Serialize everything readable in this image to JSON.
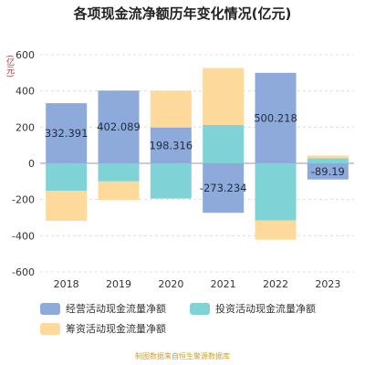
{
  "title": "各项现金流净额历年变化情况(亿元)",
  "unit_label": "(亿元)",
  "footer": "制图数据来自恒生聚源数据库",
  "chart_data": {
    "type": "bar",
    "stacked": true,
    "categories": [
      "2018",
      "2019",
      "2020",
      "2021",
      "2022",
      "2023"
    ],
    "series": [
      {
        "name": "经营活动现金流量净额",
        "color": "#8eaadb",
        "values": [
          332.391,
          402.089,
          198.316,
          -273.234,
          500.218,
          -89.19
        ]
      },
      {
        "name": "投资活动现金流量净额",
        "color": "#7fd3d6",
        "values": [
          -152,
          -100,
          -195,
          212,
          -315,
          28
        ]
      },
      {
        "name": "筹资活动现金流量净额",
        "color": "#fdd99b",
        "values": [
          -165,
          -102,
          203,
          315,
          -107,
          15
        ]
      }
    ],
    "data_labels": [
      "332.391",
      "402.089",
      "198.316",
      "-273.234",
      "500.218",
      "-89.19"
    ],
    "y_ticks": [
      "600",
      "400",
      "200",
      "0",
      "-200",
      "-400",
      "-600"
    ],
    "ylim": [
      -600,
      600
    ],
    "grid": true,
    "legend_position": "bottom"
  }
}
